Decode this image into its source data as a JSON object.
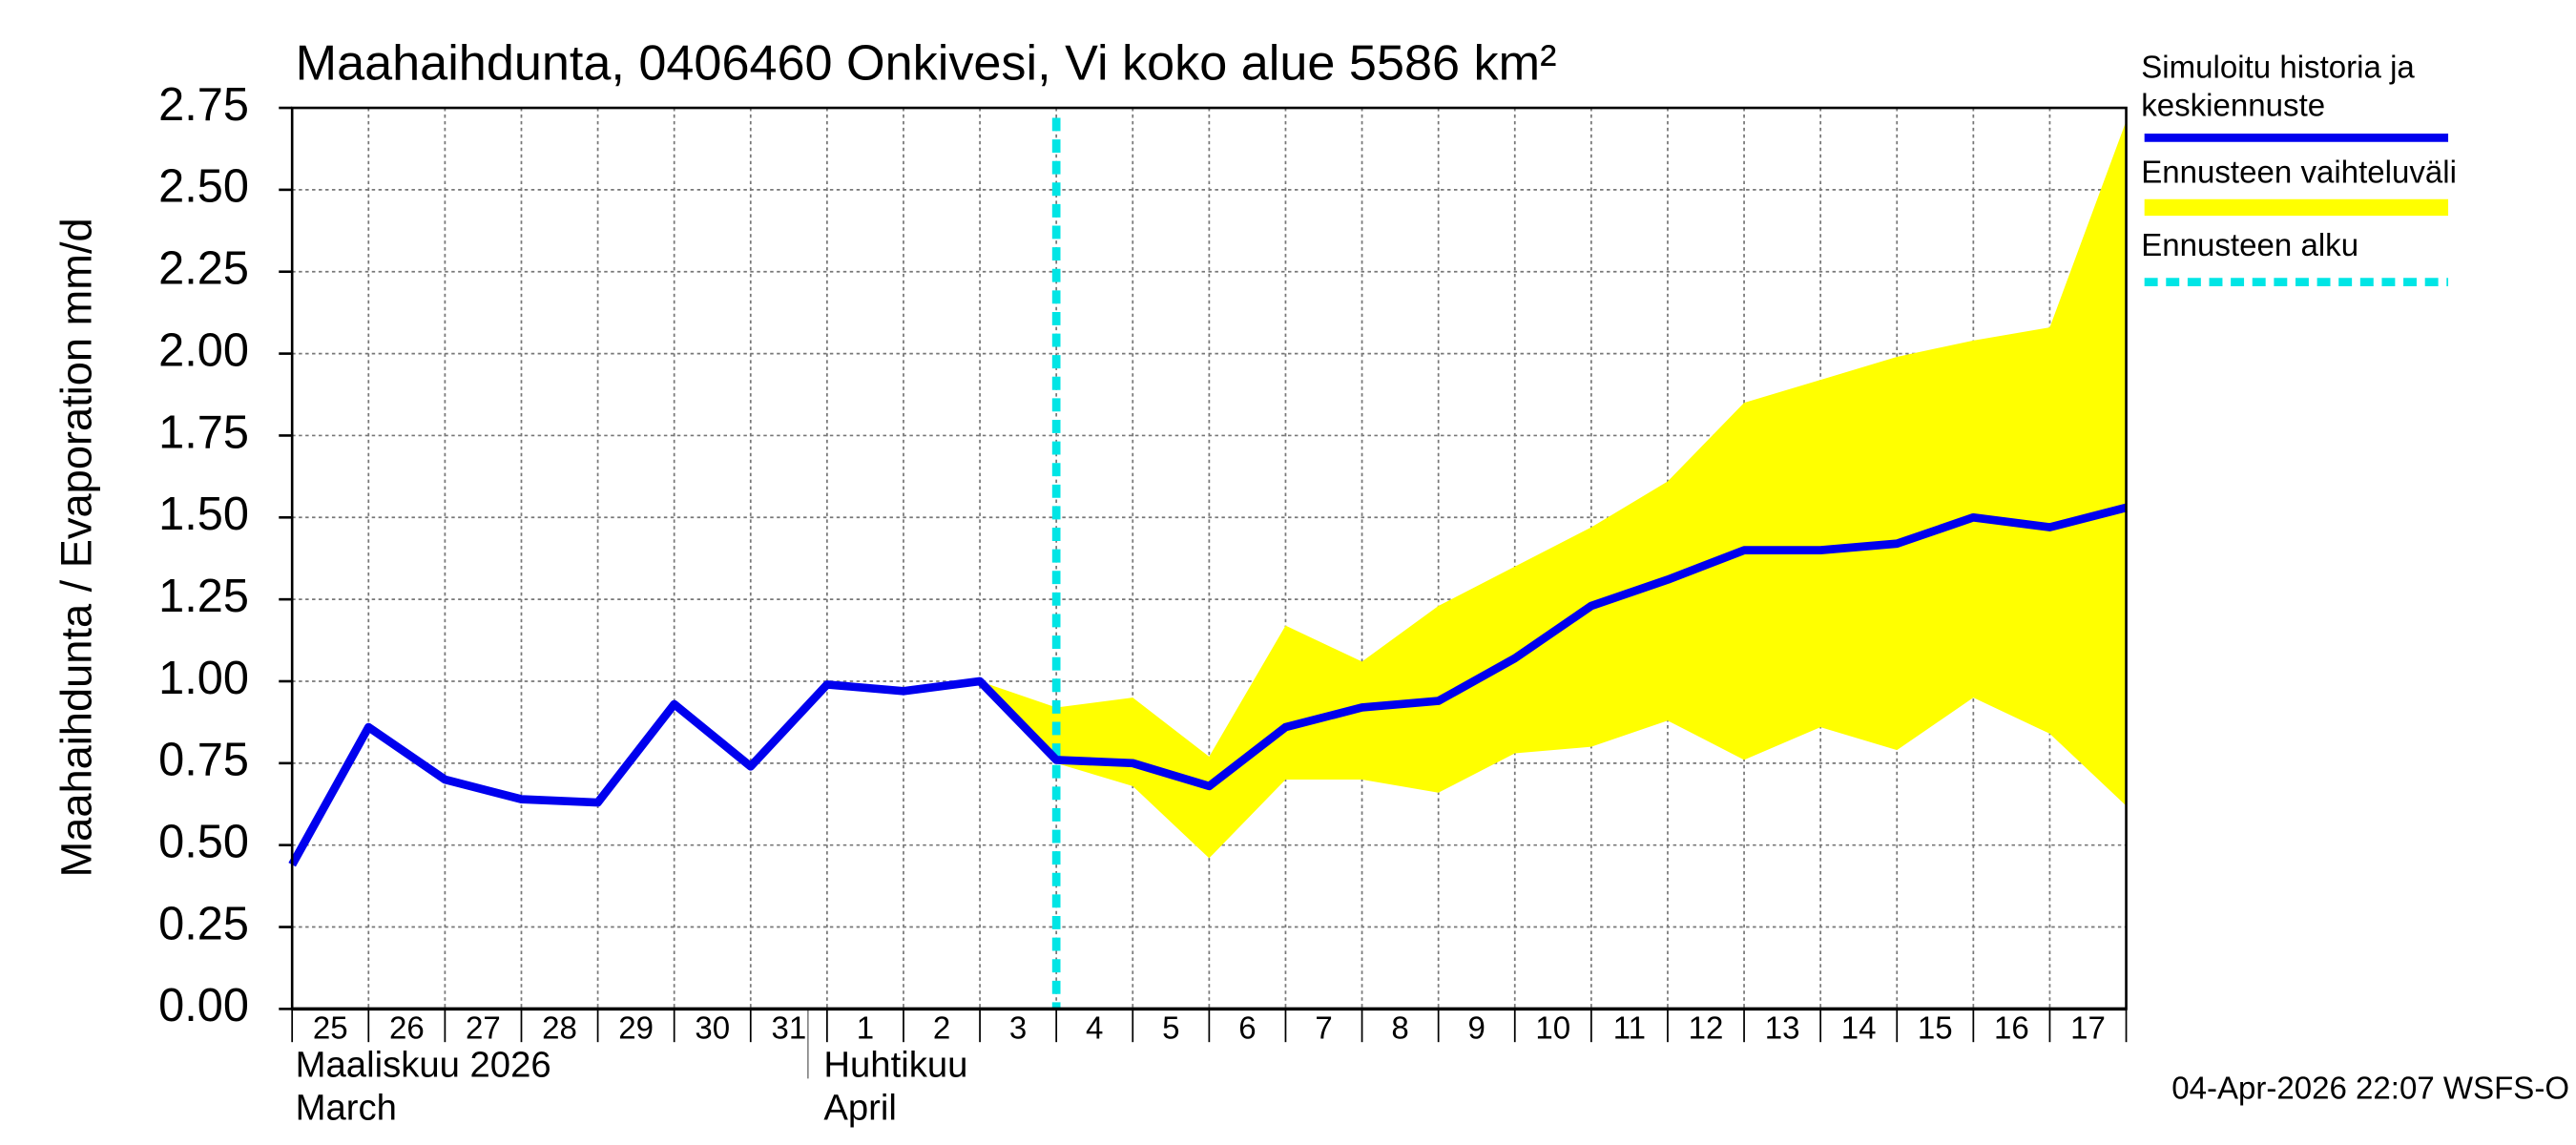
{
  "chart_data": {
    "type": "line",
    "title": "Maahaihdunta, 0406460 Onkivesi, Vi koko alue 5586 km²",
    "y_label": "Maahaihdunta / Evaporation   mm/d",
    "categories": [
      "25",
      "26",
      "27",
      "28",
      "29",
      "30",
      "31",
      "1",
      "2",
      "3",
      "4",
      "5",
      "6",
      "7",
      "8",
      "9",
      "10",
      "11",
      "12",
      "13",
      "14",
      "15",
      "16",
      "17",
      null
    ],
    "months": [
      {
        "index": 0,
        "label": "Maaliskuu 2026",
        "label_en": "March"
      },
      {
        "index": 7,
        "label": "Huhtikuu",
        "label_en": "April"
      }
    ],
    "series": [
      {
        "name": "Simuloitu historia ja keskiennuste",
        "color": "#0000ee",
        "values": [
          0.44,
          0.86,
          0.7,
          0.64,
          0.63,
          0.93,
          0.74,
          0.99,
          0.97,
          1.0,
          0.76,
          0.75,
          0.68,
          0.86,
          0.92,
          0.94,
          1.07,
          1.23,
          1.31,
          1.4,
          1.4,
          1.42,
          1.5,
          1.47,
          1.53
        ]
      },
      {
        "name": "Ennusteen vaihteluväli",
        "color": "#ffff00",
        "low": [
          null,
          null,
          null,
          null,
          null,
          null,
          null,
          null,
          null,
          1.0,
          0.75,
          0.68,
          0.46,
          0.7,
          0.7,
          0.66,
          0.78,
          0.8,
          0.88,
          0.76,
          0.86,
          0.79,
          0.95,
          0.84,
          0.62
        ],
        "high": [
          null,
          null,
          null,
          null,
          null,
          null,
          null,
          null,
          null,
          1.0,
          0.92,
          0.95,
          0.77,
          1.17,
          1.06,
          1.23,
          1.35,
          1.47,
          1.61,
          1.85,
          1.92,
          1.99,
          2.04,
          2.08,
          2.71
        ]
      }
    ],
    "forecast_start": {
      "name": "Ennusteen alku",
      "color": "#00e5e5",
      "index": 10
    },
    "ylim": [
      0,
      2.75
    ],
    "yticks": [
      {
        "value": 0,
        "label": "0.00"
      },
      {
        "value": 0.25,
        "label": "0.25"
      },
      {
        "value": 0.5,
        "label": "0.50"
      },
      {
        "value": 0.75,
        "label": "0.75"
      },
      {
        "value": 1,
        "label": "1.00"
      },
      {
        "value": 1.25,
        "label": "1.25"
      },
      {
        "value": 1.5,
        "label": "1.50"
      },
      {
        "value": 1.75,
        "label": "1.75"
      },
      {
        "value": 2,
        "label": "2.00"
      },
      {
        "value": 2.25,
        "label": "2.25"
      },
      {
        "value": 2.5,
        "label": "2.50"
      },
      {
        "value": 2.75,
        "label": "2.75"
      }
    ],
    "grid": true,
    "footer": "04-Apr-2026 22:07 WSFS-O"
  }
}
